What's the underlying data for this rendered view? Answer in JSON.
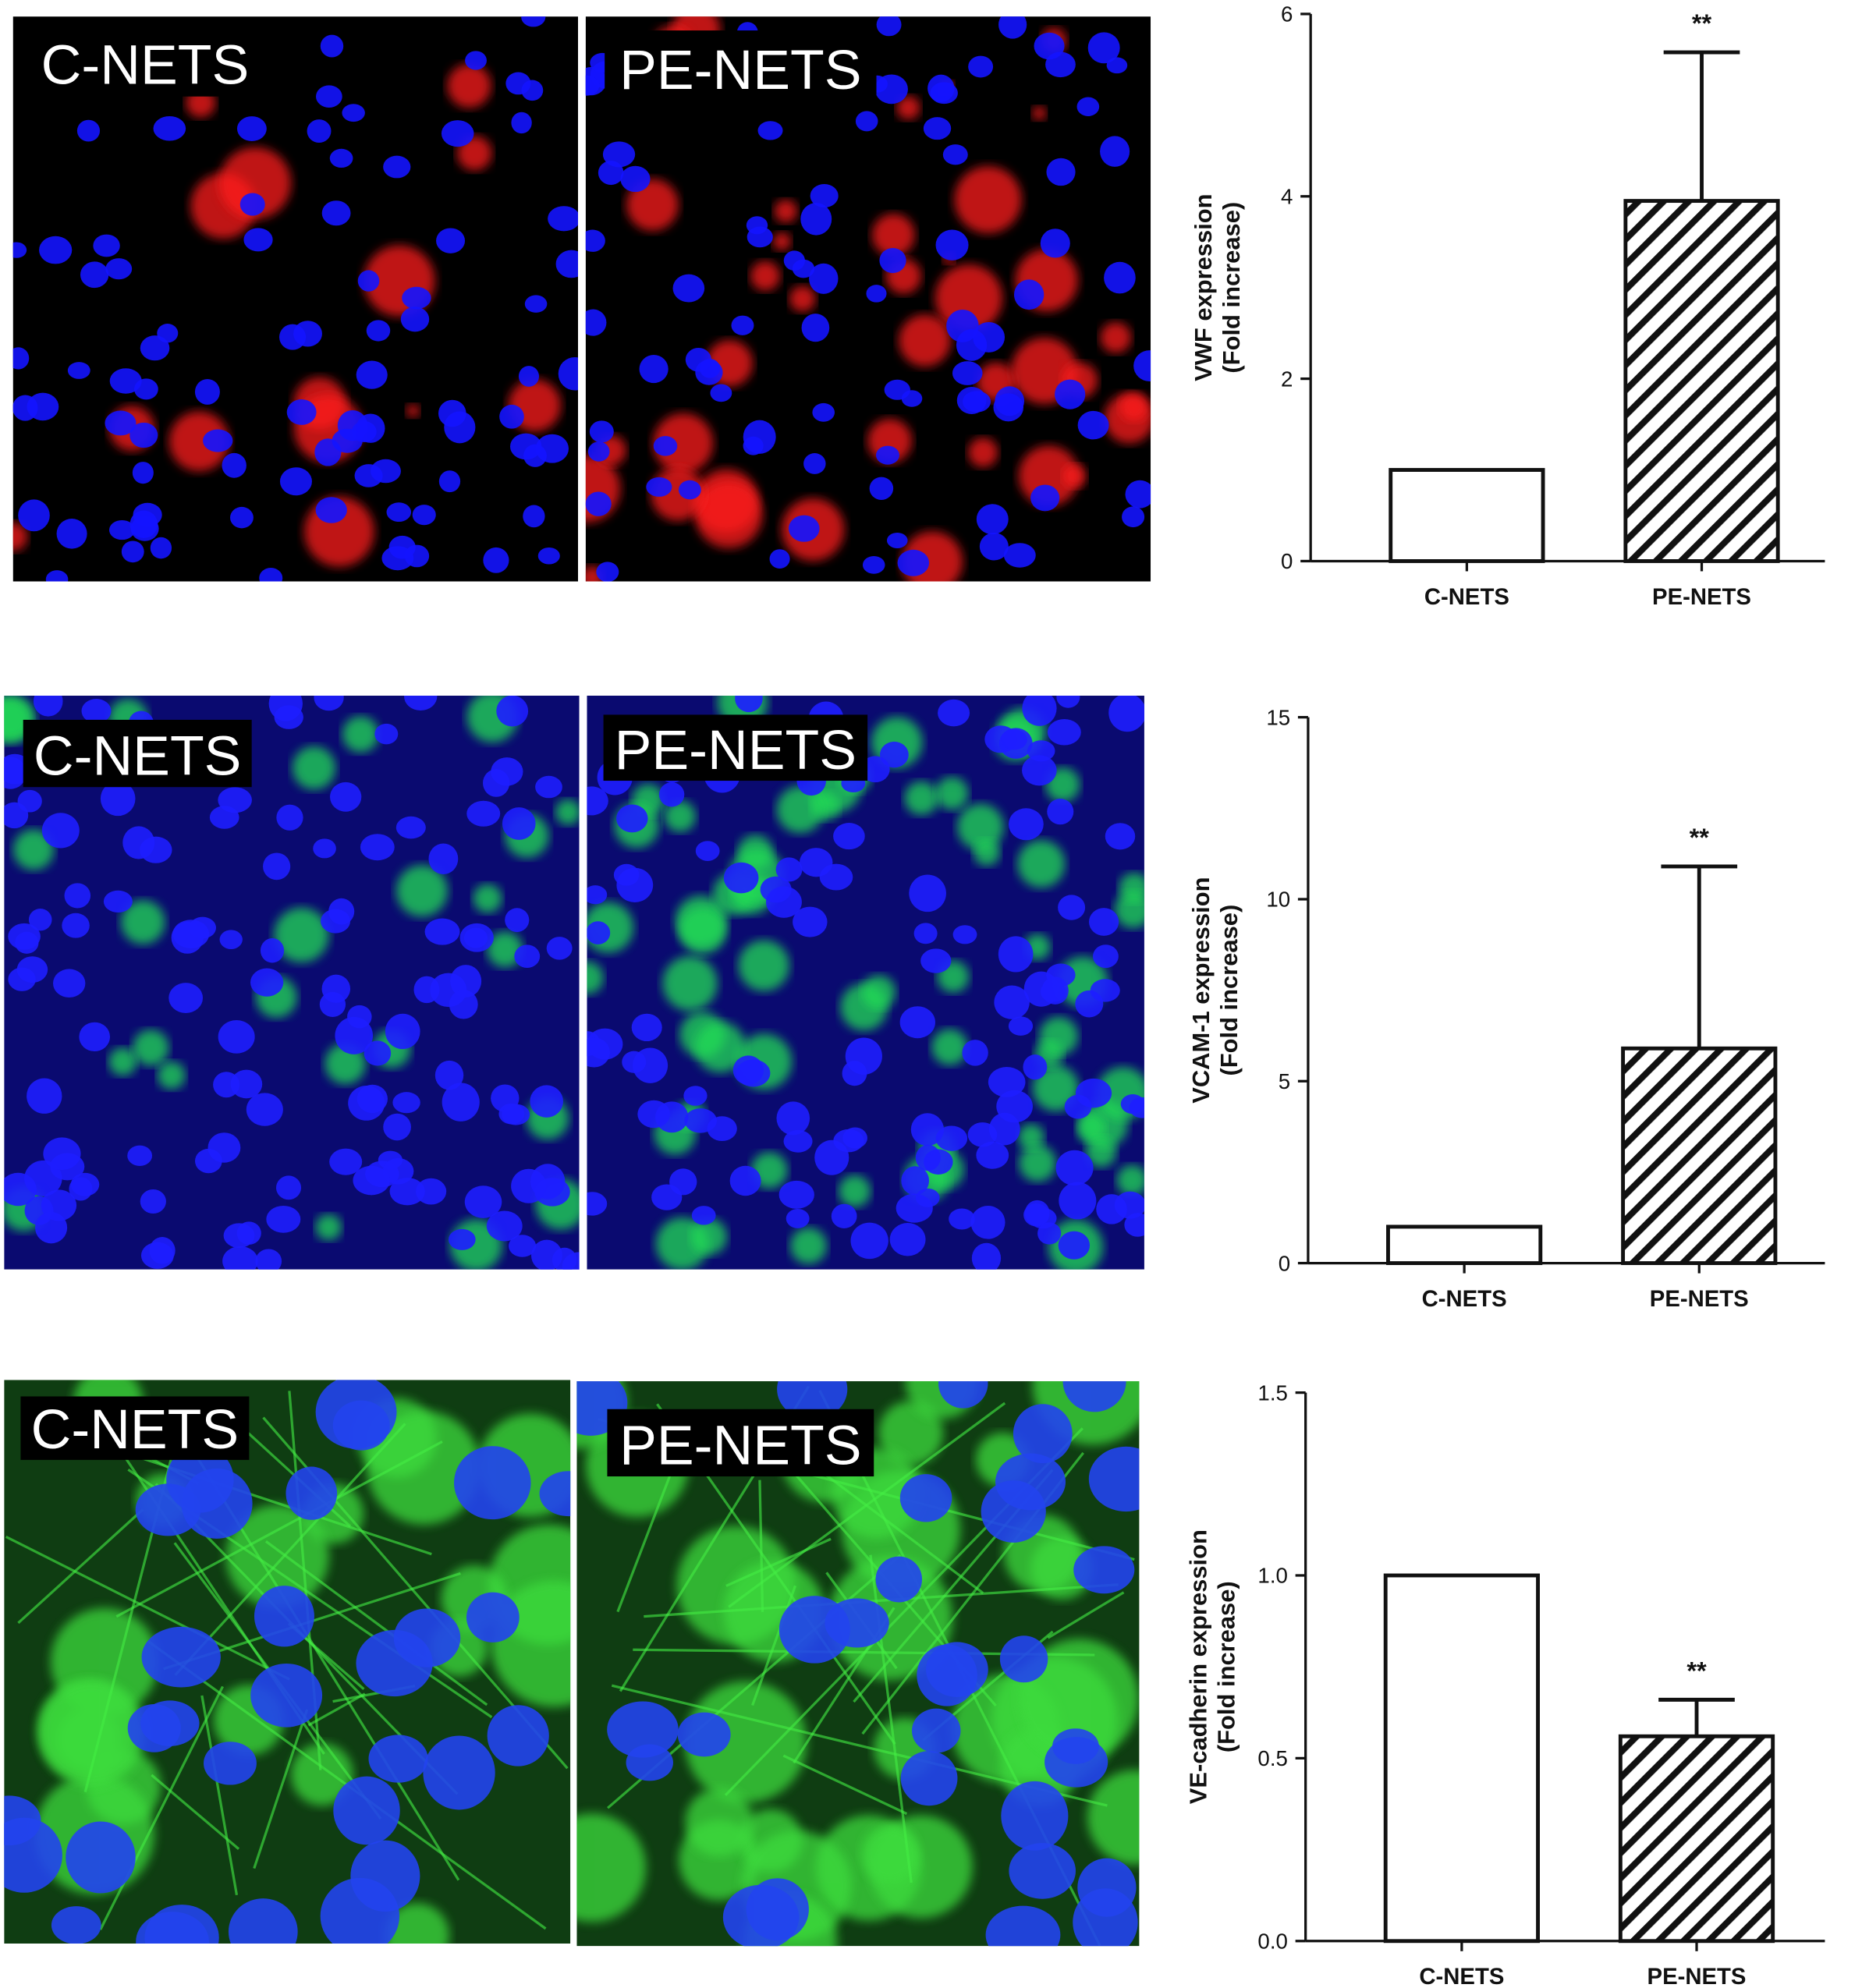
{
  "images": [
    {
      "labels": [
        "C-NETS",
        "PE-NETS"
      ]
    },
    {
      "labels": [
        "C-NETS",
        "PE-NETS"
      ]
    },
    {
      "labels": [
        "C-NETS",
        "PE-NETS"
      ]
    }
  ],
  "chart_data": [
    {
      "type": "bar",
      "ylabel": [
        "VWF expression",
        "(Fold increase)"
      ],
      "categories": [
        "C-NETS",
        "PE-NETS"
      ],
      "values": [
        1,
        3.95
      ],
      "errors": [
        null,
        1.63
      ],
      "annotations": [
        null,
        "**"
      ],
      "bar_styles": [
        "open",
        "hatched"
      ],
      "ylim": [
        0,
        6
      ],
      "yticks": [
        0,
        2,
        4,
        6
      ]
    },
    {
      "type": "bar",
      "ylabel": [
        "VCAM-1 expression",
        "(Fold increase)"
      ],
      "categories": [
        "C-NETS",
        "PE-NETS"
      ],
      "values": [
        1,
        5.9
      ],
      "errors": [
        null,
        5.0
      ],
      "annotations": [
        null,
        "**"
      ],
      "bar_styles": [
        "open",
        "hatched"
      ],
      "ylim": [
        0,
        15
      ],
      "yticks": [
        0,
        5,
        10,
        15
      ]
    },
    {
      "type": "bar",
      "ylabel": [
        "VE-cadherin expression",
        "(Fold increase)"
      ],
      "categories": [
        "C-NETS",
        "PE-NETS"
      ],
      "values": [
        1.0,
        0.56
      ],
      "errors": [
        null,
        0.1
      ],
      "annotations": [
        null,
        "**"
      ],
      "bar_styles": [
        "open",
        "hatched"
      ],
      "ylim": [
        0,
        1.5
      ],
      "yticks": [
        {
          "value": 0,
          "label": "0.0"
        },
        0.5,
        {
          "value": 1,
          "label": "1.0"
        },
        1.5
      ]
    }
  ]
}
